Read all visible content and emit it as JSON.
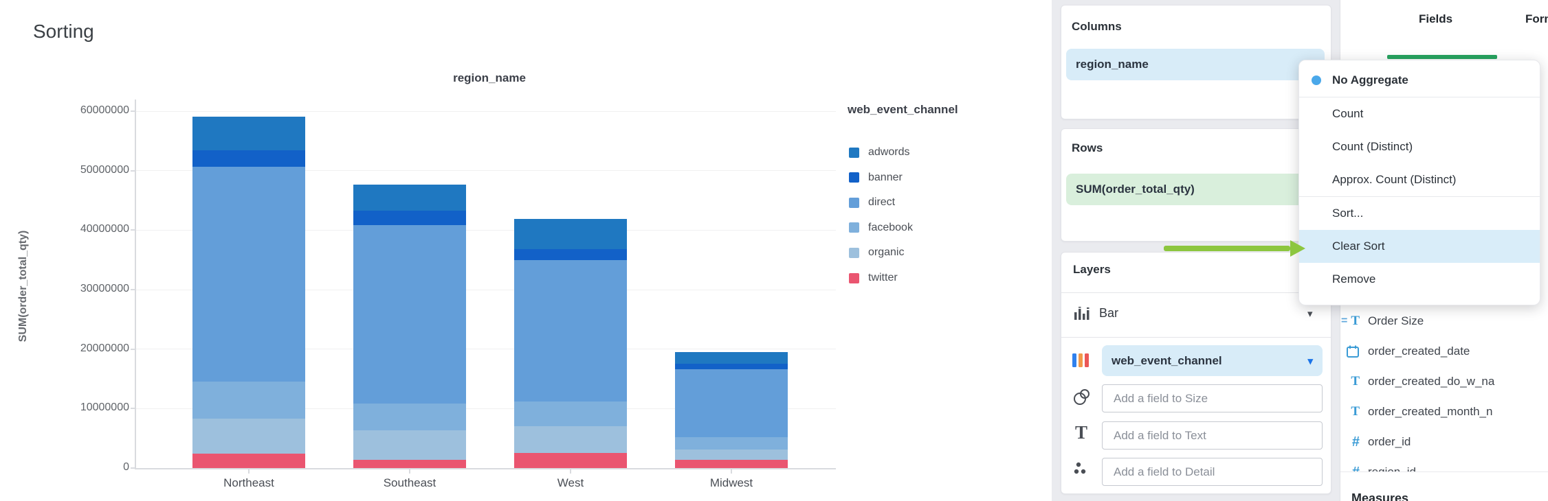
{
  "page_title": "Sorting",
  "chart_data": {
    "type": "bar",
    "stacked": true,
    "title": "region_name",
    "ylabel": "SUM(order_total_qty)",
    "xlabel": "",
    "categories": [
      "Northeast",
      "Southeast",
      "West",
      "Midwest"
    ],
    "series": [
      {
        "name": "adwords",
        "color": "#1f78c1",
        "values": [
          5700000,
          4300000,
          5100000,
          2000000
        ]
      },
      {
        "name": "banner",
        "color": "#1261c8",
        "values": [
          2800000,
          2400000,
          1800000,
          900000
        ]
      },
      {
        "name": "direct",
        "color": "#639ed9",
        "values": [
          36100000,
          30000000,
          23800000,
          11400000
        ]
      },
      {
        "name": "facebook",
        "color": "#7fb0dc",
        "values": [
          6200000,
          4600000,
          4200000,
          2100000
        ]
      },
      {
        "name": "organic",
        "color": "#9dc0dd",
        "values": [
          5900000,
          4900000,
          4500000,
          1700000
        ]
      },
      {
        "name": "twitter",
        "color": "#ea5570",
        "values": [
          2400000,
          1400000,
          2500000,
          1400000
        ]
      }
    ],
    "stack_bottom_to_top": [
      "twitter",
      "organic",
      "facebook",
      "direct",
      "banner",
      "adwords"
    ],
    "totals": [
      59100000,
      47600000,
      41900000,
      19500000
    ],
    "ylim": [
      0,
      60000000
    ],
    "yticks": [
      "0",
      "10000000",
      "20000000",
      "30000000",
      "40000000",
      "50000000",
      "60000000"
    ],
    "grid": true,
    "legend_title": "web_event_channel",
    "legend_position": "right"
  },
  "config_panel": {
    "columns": {
      "label": "Columns",
      "pill": "region_name",
      "pill_color": "#d8ecf8"
    },
    "rows": {
      "label": "Rows",
      "pill": "SUM(order_total_qty)",
      "pill_color": "#d9efdc"
    },
    "layers": {
      "label": "Layers",
      "layer_type": "Bar",
      "color_field": "web_event_channel",
      "color_field_pill_color": "#d8ecf8",
      "size_placeholder": "Add a field to Size",
      "text_placeholder": "Add a field to Text",
      "detail_placeholder": "Add a field to Detail"
    }
  },
  "context_menu": {
    "items": [
      {
        "label": "No Aggregate",
        "bold": true,
        "selected": true,
        "divider_after": true
      },
      {
        "label": "Count"
      },
      {
        "label": "Count (Distinct)"
      },
      {
        "label": "Approx. Count (Distinct)",
        "divider_after": true
      },
      {
        "label": "Sort..."
      },
      {
        "label": "Clear Sort",
        "highlighted": true
      },
      {
        "label": "Remove"
      }
    ],
    "selected_dot_color": "#4aa8ea",
    "highlight_color": "#d9edf9"
  },
  "annotation_arrow": {
    "color": "#8dc63f",
    "points_to": "Clear Sort"
  },
  "fields_panel": {
    "tabs": [
      {
        "label": "Fields",
        "active": true,
        "underline_color": "#27a35f"
      },
      {
        "label": "Format",
        "active": false,
        "clipped": true
      }
    ],
    "fields": [
      {
        "icon": "formula-text",
        "label": "Order Size"
      },
      {
        "icon": "calendar",
        "label": "order_created_date"
      },
      {
        "icon": "text",
        "label": "order_created_do_w_na"
      },
      {
        "icon": "text",
        "label": "order_created_month_n"
      },
      {
        "icon": "number",
        "label": "order_id"
      },
      {
        "icon": "number",
        "label": "region_id",
        "clipped": true
      }
    ],
    "section_header": "Measures",
    "icon_color": "#3a9bd5"
  }
}
